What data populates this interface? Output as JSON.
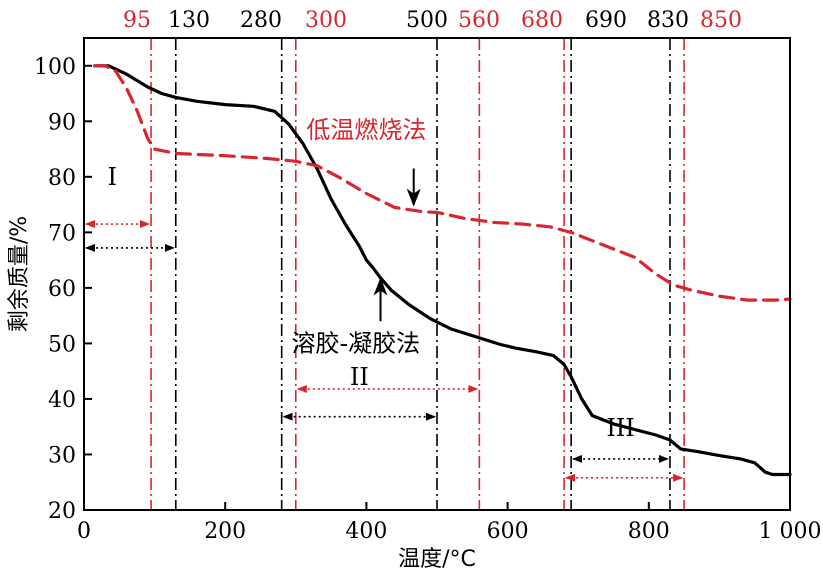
{
  "chart_data": {
    "type": "line",
    "xlabel": "温度/°C",
    "ylabel": "剩余质量/%",
    "xlim": [
      0,
      1000
    ],
    "ylim": [
      20,
      105
    ],
    "x_ticks": [
      {
        "value": 0,
        "label": "0"
      },
      {
        "value": 200,
        "label": "200"
      },
      {
        "value": 400,
        "label": "400"
      },
      {
        "value": 600,
        "label": "600"
      },
      {
        "value": 800,
        "label": "800"
      },
      {
        "value": 1000,
        "label": "1 000"
      }
    ],
    "y_ticks": [
      {
        "value": 20,
        "label": "20"
      },
      {
        "value": 30,
        "label": "30"
      },
      {
        "value": 40,
        "label": "40"
      },
      {
        "value": 50,
        "label": "50"
      },
      {
        "value": 60,
        "label": "60"
      },
      {
        "value": 70,
        "label": "70"
      },
      {
        "value": 80,
        "label": "80"
      },
      {
        "value": 90,
        "label": "90"
      },
      {
        "value": 100,
        "label": "100"
      }
    ],
    "series": [
      {
        "name": "溶胶-凝胶法",
        "color": "#000000",
        "dash": "solid",
        "points": [
          [
            15,
            100
          ],
          [
            35,
            100
          ],
          [
            60,
            98.5
          ],
          [
            90,
            96.2
          ],
          [
            110,
            95
          ],
          [
            130,
            94.3
          ],
          [
            160,
            93.6
          ],
          [
            200,
            93
          ],
          [
            240,
            92.7
          ],
          [
            270,
            91.8
          ],
          [
            290,
            89.5
          ],
          [
            310,
            86
          ],
          [
            330,
            81.5
          ],
          [
            350,
            76
          ],
          [
            370,
            71.5
          ],
          [
            390,
            67.5
          ],
          [
            400,
            65
          ],
          [
            410,
            63.5
          ],
          [
            420,
            61.8
          ],
          [
            435,
            59.6
          ],
          [
            460,
            57
          ],
          [
            490,
            54.5
          ],
          [
            520,
            52.6
          ],
          [
            560,
            51
          ],
          [
            590,
            49.8
          ],
          [
            610,
            49.2
          ],
          [
            640,
            48.5
          ],
          [
            665,
            47.8
          ],
          [
            680,
            46.2
          ],
          [
            690,
            44
          ],
          [
            705,
            40
          ],
          [
            720,
            37
          ],
          [
            750,
            35.5
          ],
          [
            780,
            34.5
          ],
          [
            810,
            33.5
          ],
          [
            830,
            32.6
          ],
          [
            845,
            31
          ],
          [
            870,
            30.5
          ],
          [
            900,
            29.8
          ],
          [
            930,
            29.2
          ],
          [
            950,
            28.5
          ],
          [
            965,
            26.8
          ],
          [
            975,
            26.4
          ],
          [
            1000,
            26.4
          ]
        ]
      },
      {
        "name": "低温燃烧法",
        "color": "#d9262e",
        "dash": "dashed",
        "points": [
          [
            15,
            100
          ],
          [
            30,
            100
          ],
          [
            45,
            99
          ],
          [
            60,
            96
          ],
          [
            75,
            92
          ],
          [
            90,
            87
          ],
          [
            100,
            85
          ],
          [
            130,
            84.2
          ],
          [
            200,
            83.8
          ],
          [
            260,
            83.3
          ],
          [
            300,
            82.8
          ],
          [
            330,
            82
          ],
          [
            360,
            80
          ],
          [
            400,
            77
          ],
          [
            440,
            74.5
          ],
          [
            480,
            73.7
          ],
          [
            500,
            73.6
          ],
          [
            540,
            72.5
          ],
          [
            580,
            71.8
          ],
          [
            620,
            71.5
          ],
          [
            660,
            71
          ],
          [
            690,
            70
          ],
          [
            740,
            67.5
          ],
          [
            780,
            65.5
          ],
          [
            810,
            62.5
          ],
          [
            835,
            60.5
          ],
          [
            860,
            59.6
          ],
          [
            900,
            58.5
          ],
          [
            940,
            57.8
          ],
          [
            980,
            57.8
          ],
          [
            1000,
            58
          ]
        ]
      }
    ],
    "vlines": [
      {
        "x": 95,
        "label": "95",
        "color": "#d9262e"
      },
      {
        "x": 130,
        "label": "130",
        "color": "#000000"
      },
      {
        "x": 280,
        "label": "280",
        "color": "#000000"
      },
      {
        "x": 300,
        "label": "300",
        "color": "#d9262e"
      },
      {
        "x": 500,
        "label": "500",
        "color": "#000000"
      },
      {
        "x": 560,
        "label": "560",
        "color": "#d9262e"
      },
      {
        "x": 680,
        "label": "680",
        "color": "#d9262e"
      },
      {
        "x": 690,
        "label": "690",
        "color": "#000000"
      },
      {
        "x": 830,
        "label": "830",
        "color": "#000000"
      },
      {
        "x": 850,
        "label": "850",
        "color": "#d9262e"
      }
    ],
    "regions": [
      {
        "label": "I",
        "label_at": [
          40,
          78.5
        ],
        "arrows": [
          {
            "x1": 0,
            "x2": 95,
            "y": 71.5,
            "color": "#d9262e"
          },
          {
            "x1": 0,
            "x2": 130,
            "y": 67.2,
            "color": "#000000"
          }
        ]
      },
      {
        "label": "II",
        "label_at": [
          390,
          42.5
        ],
        "arrows": [
          {
            "x1": 300,
            "x2": 560,
            "y": 41.8,
            "color": "#d9262e"
          },
          {
            "x1": 280,
            "x2": 500,
            "y": 36.8,
            "color": "#000000"
          }
        ]
      },
      {
        "label": "III",
        "label_at": [
          760,
          33.3
        ],
        "arrows": [
          {
            "x1": 690,
            "x2": 830,
            "y": 29.2,
            "color": "#000000"
          },
          {
            "x1": 680,
            "x2": 850,
            "y": 25.8,
            "color": "#d9262e"
          }
        ]
      }
    ],
    "annotations": [
      {
        "text": "低温燃烧法",
        "color": "#d9262e",
        "text_at": [
          400,
          87
        ],
        "arrow_from": [
          467,
          81.5
        ],
        "arrow_to": [
          467,
          75
        ]
      },
      {
        "text": "溶胶-凝胶法",
        "color": "#000000",
        "text_at": [
          385,
          48.5
        ],
        "arrow_from": [
          420,
          54
        ],
        "arrow_to": [
          420,
          61.5
        ]
      }
    ]
  }
}
